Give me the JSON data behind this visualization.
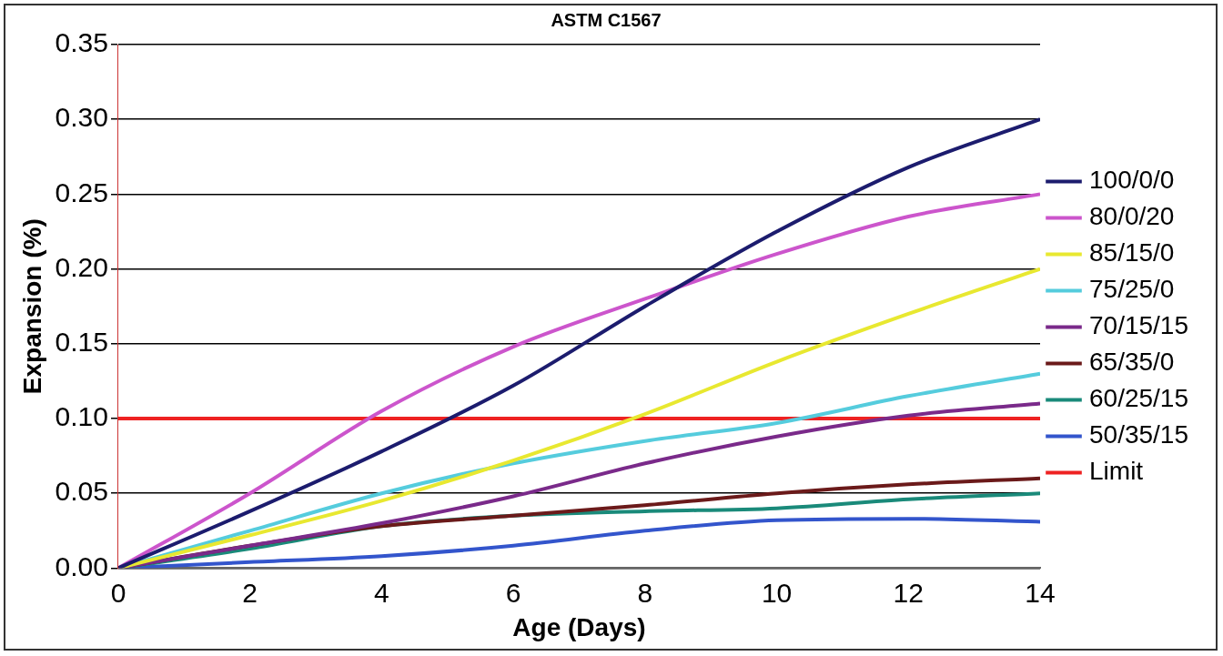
{
  "chart_data": {
    "type": "line",
    "title": "ASTM C1567",
    "xlabel": "Age (Days)",
    "ylabel": "Expansion (%)",
    "x": [
      0,
      2,
      4,
      6,
      8,
      10,
      12,
      14
    ],
    "xlim": [
      0,
      14
    ],
    "xticks": [
      0,
      2,
      4,
      6,
      8,
      10,
      12,
      14
    ],
    "ylim": [
      0,
      0.35
    ],
    "yticks": [
      {
        "value": 0,
        "label": "0.00"
      },
      {
        "value": 0.05,
        "label": "0.05"
      },
      {
        "value": 0.1,
        "label": "0.10"
      },
      {
        "value": 0.15,
        "label": "0.15"
      },
      {
        "value": 0.2,
        "label": "0.20"
      },
      {
        "value": 0.25,
        "label": "0.25"
      },
      {
        "value": 0.3,
        "label": "0.30"
      },
      {
        "value": 0.35,
        "label": "0.35"
      }
    ],
    "grid": "y",
    "legend": "right",
    "marker": "none",
    "line_style": "solid",
    "series": [
      {
        "name": "100/0/0",
        "color": "#1c1c6e",
        "values": [
          0,
          0.038,
          0.078,
          0.122,
          0.175,
          0.225,
          0.268,
          0.3
        ]
      },
      {
        "name": "80/0/20",
        "color": "#cc55cc",
        "values": [
          0,
          0.05,
          0.105,
          0.148,
          0.18,
          0.21,
          0.235,
          0.25
        ]
      },
      {
        "name": "85/15/0",
        "color": "#e8e830",
        "values": [
          0,
          0.022,
          0.045,
          0.072,
          0.103,
          0.138,
          0.17,
          0.2
        ]
      },
      {
        "name": "75/25/0",
        "color": "#55ccdd",
        "values": [
          0,
          0.025,
          0.05,
          0.07,
          0.085,
          0.097,
          0.115,
          0.13
        ]
      },
      {
        "name": "70/15/15",
        "color": "#7a2a8a",
        "values": [
          0,
          0.015,
          0.03,
          0.048,
          0.07,
          0.088,
          0.102,
          0.11
        ]
      },
      {
        "name": "65/35/0",
        "color": "#6b1a1a",
        "values": [
          0,
          0.015,
          0.028,
          0.035,
          0.042,
          0.05,
          0.056,
          0.06
        ]
      },
      {
        "name": "60/25/15",
        "color": "#1a8a7a",
        "values": [
          0,
          0.013,
          0.028,
          0.035,
          0.038,
          0.04,
          0.046,
          0.05
        ]
      },
      {
        "name": "50/35/15",
        "color": "#3355cc",
        "values": [
          0,
          0.004,
          0.008,
          0.015,
          0.025,
          0.032,
          0.033,
          0.031
        ]
      }
    ],
    "ref_lines": [
      {
        "axis": "y",
        "value": 0.1,
        "label": "Limit",
        "color": "#ee2222"
      }
    ]
  }
}
